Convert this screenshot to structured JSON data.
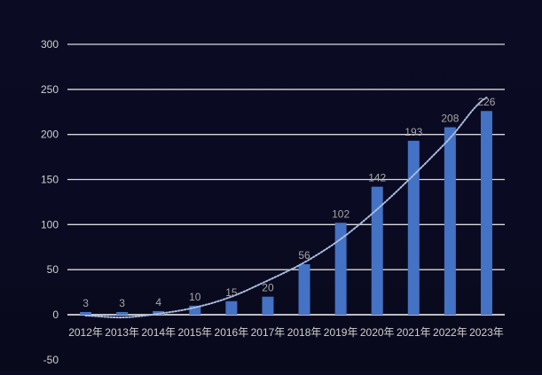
{
  "chart_data": {
    "type": "bar",
    "title": "",
    "xlabel": "",
    "ylabel": "",
    "categories": [
      "2012年",
      "2013年",
      "2014年",
      "2015年",
      "2016年",
      "2017年",
      "2018年",
      "2019年",
      "2020年",
      "2021年",
      "2022年",
      "2023年"
    ],
    "values": [
      3,
      3,
      4,
      10,
      15,
      20,
      56,
      102,
      142,
      193,
      208,
      226
    ],
    "data_labels": [
      "3",
      "3",
      "4",
      "10",
      "15",
      "20",
      "56",
      "102",
      "142",
      "193",
      "208",
      "226"
    ],
    "y_ticks": [
      "300",
      "250",
      "200",
      "150",
      "100",
      "50",
      "0",
      "-50"
    ],
    "ylim": [
      -50,
      300
    ],
    "grid": true,
    "legend": "none",
    "trendline": {
      "style": "dotted",
      "fit": "polynomial",
      "values": [
        -1,
        -3,
        1,
        8,
        20,
        38,
        58,
        84,
        117,
        155,
        196,
        241
      ]
    },
    "colors": {
      "background": "#0b0b24",
      "bar": "#4472c4",
      "grid": "#d9d9d9",
      "tick_text": "#d0d0d0",
      "data_label": "#a6a6a6",
      "trendline": "#a9bfe0"
    }
  }
}
